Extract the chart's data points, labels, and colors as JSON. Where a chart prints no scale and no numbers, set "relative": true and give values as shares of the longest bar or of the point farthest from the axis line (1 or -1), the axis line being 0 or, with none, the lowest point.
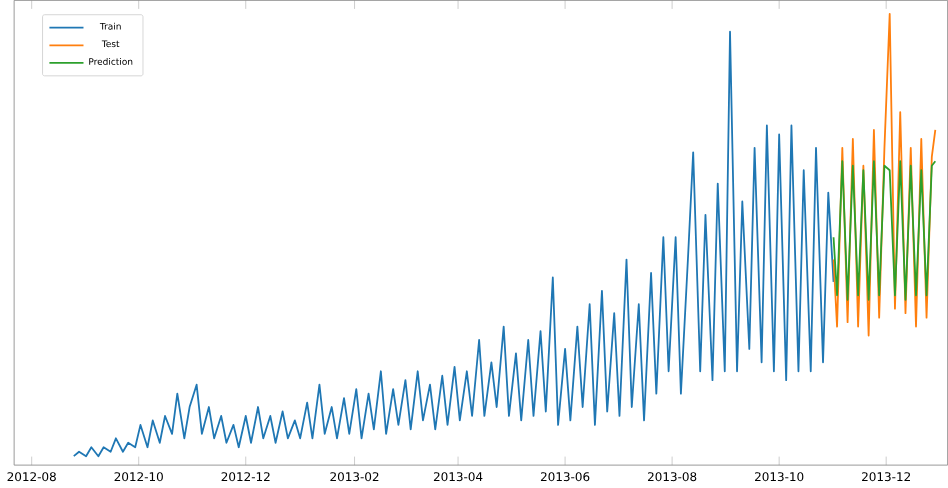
{
  "chart_data": {
    "type": "line",
    "relative": true,
    "legend": "top left",
    "xlim": [
      "2012-07-22",
      "2014-01-05"
    ],
    "xticks": [
      "2012-08",
      "2012-10",
      "2012-12",
      "2013-02",
      "2013-04",
      "2013-06",
      "2013-08",
      "2013-10",
      "2013-12"
    ],
    "series": [
      {
        "name": "Train",
        "color": "#1f77b4",
        "x": [
          "2012-08-25",
          "2012-08-28",
          "2012-09-01",
          "2012-09-04",
          "2012-09-08",
          "2012-09-11",
          "2012-09-15",
          "2012-09-18",
          "2012-09-22",
          "2012-09-25",
          "2012-09-29",
          "2012-10-02",
          "2012-10-06",
          "2012-10-09",
          "2012-10-13",
          "2012-10-16",
          "2012-10-20",
          "2012-10-23",
          "2012-10-27",
          "2012-10-30",
          "2012-11-03",
          "2012-11-06",
          "2012-11-10",
          "2012-11-13",
          "2012-11-17",
          "2012-11-20",
          "2012-11-24",
          "2012-11-27",
          "2012-12-01",
          "2012-12-04",
          "2012-12-08",
          "2012-12-11",
          "2012-12-15",
          "2012-12-18",
          "2012-12-22",
          "2012-12-25",
          "2012-12-29",
          "2013-01-01",
          "2013-01-05",
          "2013-01-08",
          "2013-01-12",
          "2013-01-15",
          "2013-01-19",
          "2013-01-22",
          "2013-01-26",
          "2013-01-29",
          "2013-02-02",
          "2013-02-05",
          "2013-02-09",
          "2013-02-12",
          "2013-02-16",
          "2013-02-19",
          "2013-02-23",
          "2013-02-26",
          "2013-03-02",
          "2013-03-05",
          "2013-03-09",
          "2013-03-12",
          "2013-03-16",
          "2013-03-19",
          "2013-03-23",
          "2013-03-26",
          "2013-03-30",
          "2013-04-02",
          "2013-04-06",
          "2013-04-09",
          "2013-04-13",
          "2013-04-16",
          "2013-04-20",
          "2013-04-23",
          "2013-04-27",
          "2013-04-30",
          "2013-05-04",
          "2013-05-07",
          "2013-05-11",
          "2013-05-14",
          "2013-05-18",
          "2013-05-21",
          "2013-05-25",
          "2013-05-28",
          "2013-06-01",
          "2013-06-04",
          "2013-06-08",
          "2013-06-11",
          "2013-06-15",
          "2013-06-18",
          "2013-06-22",
          "2013-06-25",
          "2013-06-29",
          "2013-07-02",
          "2013-07-06",
          "2013-07-09",
          "2013-07-13",
          "2013-07-16",
          "2013-07-20",
          "2013-07-23",
          "2013-07-27",
          "2013-07-30",
          "2013-08-03",
          "2013-08-06",
          "2013-08-10",
          "2013-08-13",
          "2013-08-17",
          "2013-08-20",
          "2013-08-24",
          "2013-08-27",
          "2013-08-31",
          "2013-09-03",
          "2013-09-07",
          "2013-09-10",
          "2013-09-14",
          "2013-09-17",
          "2013-09-21",
          "2013-09-24",
          "2013-09-28",
          "2013-10-01",
          "2013-10-05",
          "2013-10-08",
          "2013-10-12",
          "2013-10-15",
          "2013-10-19",
          "2013-10-22",
          "2013-10-26",
          "2013-10-29",
          "2013-11-01"
        ],
        "values": [
          0.01,
          0.02,
          0.01,
          0.03,
          0.01,
          0.03,
          0.02,
          0.05,
          0.02,
          0.04,
          0.03,
          0.08,
          0.03,
          0.09,
          0.04,
          0.1,
          0.06,
          0.15,
          0.05,
          0.12,
          0.17,
          0.06,
          0.12,
          0.05,
          0.1,
          0.04,
          0.08,
          0.03,
          0.1,
          0.04,
          0.12,
          0.05,
          0.1,
          0.04,
          0.11,
          0.05,
          0.09,
          0.05,
          0.13,
          0.05,
          0.17,
          0.06,
          0.12,
          0.05,
          0.14,
          0.06,
          0.16,
          0.05,
          0.15,
          0.07,
          0.2,
          0.06,
          0.16,
          0.08,
          0.18,
          0.07,
          0.2,
          0.09,
          0.17,
          0.07,
          0.19,
          0.08,
          0.21,
          0.09,
          0.2,
          0.1,
          0.27,
          0.1,
          0.22,
          0.12,
          0.3,
          0.1,
          0.24,
          0.09,
          0.27,
          0.1,
          0.29,
          0.11,
          0.41,
          0.08,
          0.25,
          0.09,
          0.3,
          0.12,
          0.35,
          0.08,
          0.38,
          0.11,
          0.33,
          0.1,
          0.45,
          0.12,
          0.35,
          0.09,
          0.42,
          0.15,
          0.5,
          0.2,
          0.5,
          0.15,
          0.45,
          0.69,
          0.2,
          0.55,
          0.18,
          0.62,
          0.2,
          0.96,
          0.2,
          0.58,
          0.25,
          0.7,
          0.22,
          0.75,
          0.2,
          0.73,
          0.18,
          0.75,
          0.2,
          0.65,
          0.2,
          0.7,
          0.22,
          0.6,
          0.4
        ]
      },
      {
        "name": "Test",
        "color": "#ff7f0e",
        "x": [
          "2013-11-01",
          "2013-11-03",
          "2013-11-06",
          "2013-11-09",
          "2013-11-12",
          "2013-11-15",
          "2013-11-18",
          "2013-11-21",
          "2013-11-24",
          "2013-11-27",
          "2013-11-30",
          "2013-12-03",
          "2013-12-06",
          "2013-12-09",
          "2013-12-12",
          "2013-12-15",
          "2013-12-18",
          "2013-12-21",
          "2013-12-24",
          "2013-12-27",
          "2013-12-29"
        ],
        "values": [
          0.45,
          0.3,
          0.7,
          0.31,
          0.72,
          0.3,
          0.66,
          0.28,
          0.74,
          0.32,
          0.7,
          1.0,
          0.34,
          0.78,
          0.33,
          0.7,
          0.3,
          0.72,
          0.32,
          0.68,
          0.74
        ]
      },
      {
        "name": "Prediction",
        "color": "#2ca02c",
        "x": [
          "2013-11-01",
          "2013-11-03",
          "2013-11-06",
          "2013-11-09",
          "2013-11-12",
          "2013-11-15",
          "2013-11-18",
          "2013-11-21",
          "2013-11-24",
          "2013-11-27",
          "2013-11-30",
          "2013-12-03",
          "2013-12-06",
          "2013-12-09",
          "2013-12-12",
          "2013-12-15",
          "2013-12-18",
          "2013-12-21",
          "2013-12-24",
          "2013-12-27",
          "2013-12-29"
        ],
        "values": [
          0.5,
          0.37,
          0.67,
          0.36,
          0.66,
          0.37,
          0.65,
          0.36,
          0.67,
          0.37,
          0.66,
          0.65,
          0.37,
          0.67,
          0.36,
          0.66,
          0.37,
          0.65,
          0.37,
          0.66,
          0.67
        ]
      }
    ]
  }
}
